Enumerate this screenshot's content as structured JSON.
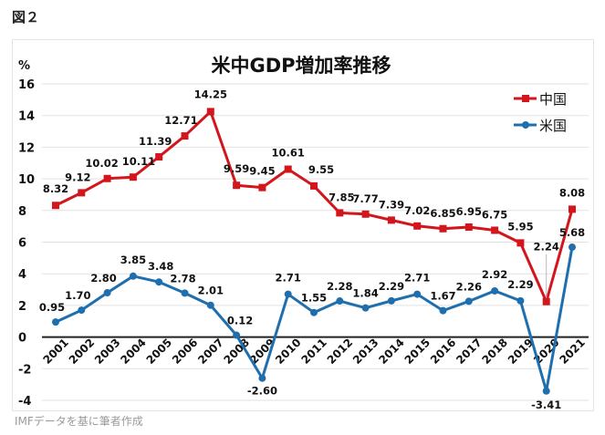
{
  "figure_label": "図２",
  "source_note": "IMFデータを基に筆者作成",
  "chart_data": {
    "type": "line",
    "title": "米中GDP増加率推移",
    "ylabel": "%",
    "xlabel": "",
    "ylim": [
      -4,
      16
    ],
    "yticks": [
      -4,
      -2,
      0,
      2,
      4,
      6,
      8,
      10,
      12,
      14,
      16
    ],
    "ytick_labels": [
      "-4",
      "-2",
      "0",
      "2",
      "4",
      "6",
      "8",
      "10",
      "12",
      "14",
      "16"
    ],
    "grid": true,
    "legend_position": "top-right",
    "x": [
      "2001",
      "2002",
      "2003",
      "2004",
      "2005",
      "2006",
      "2007",
      "2008",
      "2009",
      "2010",
      "2011",
      "2012",
      "2013",
      "2014",
      "2015",
      "2016",
      "2017",
      "2018",
      "2019",
      "2020",
      "2021"
    ],
    "series": [
      {
        "name": "中国",
        "color": "#d3151c",
        "marker": "square",
        "values": [
          8.32,
          9.12,
          10.02,
          10.11,
          11.39,
          12.71,
          14.25,
          9.59,
          9.45,
          10.61,
          9.55,
          7.85,
          7.77,
          7.39,
          7.02,
          6.85,
          6.95,
          6.75,
          5.95,
          2.24,
          8.08
        ],
        "labels": [
          "8.32",
          "9.12",
          "10.02",
          "10.11",
          "11.39",
          "12.71",
          "14.25",
          "9.59",
          "9.45",
          "10.61",
          "9.55",
          "7.85",
          "7.77",
          "7.39",
          "7.02",
          "6.85",
          "6.95",
          "6.75",
          "5.95",
          "2.24",
          "8.08"
        ]
      },
      {
        "name": "米国",
        "color": "#1f6fae",
        "marker": "circle",
        "values": [
          0.95,
          1.7,
          2.8,
          3.85,
          3.48,
          2.78,
          2.01,
          0.12,
          -2.6,
          2.71,
          1.55,
          2.28,
          1.84,
          2.29,
          2.71,
          1.67,
          2.26,
          2.92,
          2.29,
          -3.41,
          5.68
        ],
        "labels": [
          "0.95",
          "1.70",
          "2.80",
          "3.85",
          "3.48",
          "2.78",
          "2.01",
          "0.12",
          "-2.60",
          "2.71",
          "1.55",
          "2.28",
          "1.84",
          "2.29",
          "2.71",
          "1.67",
          "2.26",
          "2.92",
          "2.29",
          "-3.41",
          "5.68"
        ]
      }
    ]
  }
}
